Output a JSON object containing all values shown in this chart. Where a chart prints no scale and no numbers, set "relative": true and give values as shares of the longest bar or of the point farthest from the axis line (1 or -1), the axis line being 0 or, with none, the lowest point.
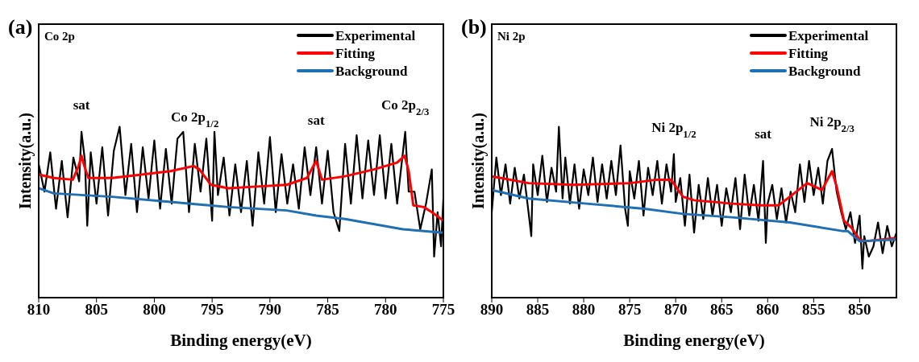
{
  "chart_data": [
    {
      "type": "line",
      "title": "(a)",
      "xlabel": "Binding energy(eV)",
      "ylabel": "Intensity(a.u.)",
      "relative": true,
      "legend": "top right",
      "xlim": [
        810,
        775
      ],
      "xticks": [
        810,
        805,
        800,
        795,
        790,
        785,
        780,
        775
      ],
      "annotations": [
        "Co 2p",
        {
          "text": "sat",
          "x": 806.3,
          "y": 0.97
        },
        {
          "text": "Co 2p$_{1/2}$",
          "x": 796.5,
          "y": 0.9
        },
        {
          "text": "sat",
          "x": 786,
          "y": 0.88
        },
        {
          "text": "Co 2p$_{2/3}$",
          "x": 778.3,
          "y": 0.97
        }
      ],
      "series": [
        {
          "name": "Experimental",
          "color": "#000000",
          "x": [
            810,
            809.5,
            809,
            808.5,
            808,
            807.5,
            807,
            806.5,
            806.3,
            806,
            805.8,
            805.5,
            805,
            804.5,
            804,
            803.5,
            803,
            802.5,
            802,
            801.5,
            801,
            800.5,
            800,
            799.5,
            799,
            798.5,
            798,
            797.5,
            797,
            796.5,
            796,
            795.5,
            795,
            794.8,
            794.5,
            794,
            793.5,
            793,
            792.5,
            792,
            791.5,
            791,
            790.5,
            790,
            789.5,
            789,
            788.5,
            788,
            787.5,
            787,
            786.5,
            786,
            785.5,
            785,
            784.5,
            784,
            783.5,
            783,
            782.5,
            782,
            781.5,
            781,
            780.5,
            780,
            779.5,
            779,
            778.5,
            778.3,
            778,
            777.5,
            777,
            776.5,
            776,
            775.8,
            775.5,
            775.2,
            775
          ],
          "values": [
            0.78,
            0.62,
            0.85,
            0.52,
            0.8,
            0.47,
            0.82,
            0.68,
            0.97,
            0.8,
            0.42,
            0.85,
            0.55,
            0.88,
            0.48,
            0.86,
            1.0,
            0.6,
            0.9,
            0.5,
            0.88,
            0.58,
            0.92,
            0.52,
            0.87,
            0.55,
            0.93,
            0.97,
            0.5,
            0.9,
            0.62,
            0.93,
            0.45,
            0.97,
            0.6,
            0.82,
            0.48,
            0.78,
            0.5,
            0.8,
            0.42,
            0.85,
            0.55,
            0.94,
            0.5,
            0.84,
            0.55,
            0.78,
            0.52,
            0.88,
            0.6,
            0.88,
            0.55,
            0.86,
            0.5,
            0.39,
            0.9,
            0.55,
            0.95,
            0.58,
            0.92,
            0.6,
            0.95,
            0.58,
            0.9,
            0.55,
            0.85,
            0.97,
            0.62,
            0.62,
            0.4,
            0.55,
            0.75,
            0.24,
            0.5,
            0.3,
            0.58
          ]
        },
        {
          "name": "Fitting",
          "color": "#ff0000",
          "x": [
            810,
            808.7,
            807.05,
            806.55,
            806.3,
            806.05,
            805.7,
            803.65,
            801.1,
            798.6,
            796.6,
            796.1,
            795.1,
            793.6,
            791.1,
            788.55,
            786.8,
            786.0,
            785.5,
            783.5,
            781.0,
            779.0,
            778.35,
            778.0,
            777.6,
            776.7,
            776.0,
            775
          ],
          "values": [
            0.72,
            0.7,
            0.69,
            0.77,
            0.83,
            0.77,
            0.7,
            0.7,
            0.72,
            0.74,
            0.77,
            0.75,
            0.66,
            0.64,
            0.65,
            0.66,
            0.7,
            0.8,
            0.69,
            0.71,
            0.75,
            0.79,
            0.83,
            0.74,
            0.54,
            0.53,
            0.5,
            0.45
          ]
        },
        {
          "name": "Background",
          "color": "#1f6fb5",
          "x": [
            810,
            808.7,
            803.65,
            798.6,
            793.6,
            788.55,
            786.0,
            783.5,
            778.5,
            775
          ],
          "values": [
            0.64,
            0.61,
            0.59,
            0.56,
            0.53,
            0.51,
            0.48,
            0.46,
            0.4,
            0.38
          ]
        }
      ]
    },
    {
      "type": "line",
      "title": "(b)",
      "xlabel": "Binding energy(eV)",
      "ylabel": "Intensity(a.u.)",
      "relative": true,
      "legend": "top right",
      "xlim": [
        890,
        846
      ],
      "xticks": [
        890,
        885,
        880,
        875,
        870,
        865,
        860,
        855,
        850
      ],
      "annotations": [
        "Ni 2p",
        {
          "text": "Ni 2p$_{1/2}$",
          "x": 870.2,
          "y": 0.84
        },
        {
          "text": "sat",
          "x": 860.5,
          "y": 0.8
        },
        {
          "text": "Ni 2p$_{2/3}$",
          "x": 853,
          "y": 0.87
        }
      ],
      "series": [
        {
          "name": "Experimental",
          "color": "#000000",
          "x": [
            890,
            889.5,
            889,
            888.5,
            888,
            887.5,
            887,
            886.5,
            886,
            885.7,
            885.5,
            885,
            884.5,
            884,
            883.5,
            883,
            882.7,
            882.3,
            882,
            881.5,
            881,
            880.5,
            880,
            879.5,
            879,
            878.5,
            878,
            877.5,
            877,
            876.5,
            876,
            875.5,
            875.2,
            875,
            874.5,
            874,
            873.5,
            873,
            872.5,
            872,
            871.5,
            871,
            870.5,
            870.2,
            870,
            869.5,
            869,
            868.5,
            868,
            867.5,
            867,
            866.5,
            866,
            865.5,
            865,
            864.5,
            864,
            863.5,
            863,
            862.5,
            862,
            861.5,
            861,
            860.5,
            860.2,
            860,
            859.5,
            859,
            858.5,
            858,
            857.5,
            857,
            856.5,
            856,
            855.5,
            855,
            854.5,
            854,
            853.5,
            853,
            852.5,
            852,
            851.5,
            851,
            850.5,
            850,
            849.7,
            849.5,
            849,
            848.5,
            848,
            847.5,
            847,
            846.5,
            846
          ],
          "values": [
            0.5,
            0.82,
            0.6,
            0.78,
            0.55,
            0.76,
            0.58,
            0.72,
            0.5,
            0.36,
            0.78,
            0.6,
            0.83,
            0.56,
            0.76,
            0.62,
            1.0,
            0.58,
            0.82,
            0.55,
            0.78,
            0.52,
            0.75,
            0.6,
            0.82,
            0.56,
            0.78,
            0.58,
            0.8,
            0.6,
            0.89,
            0.52,
            0.42,
            0.74,
            0.58,
            0.8,
            0.48,
            0.76,
            0.6,
            0.8,
            0.55,
            0.78,
            0.62,
            0.84,
            0.56,
            0.7,
            0.42,
            0.72,
            0.38,
            0.66,
            0.46,
            0.7,
            0.48,
            0.66,
            0.42,
            0.64,
            0.5,
            0.7,
            0.4,
            0.72,
            0.48,
            0.66,
            0.45,
            0.8,
            0.32,
            0.55,
            0.66,
            0.46,
            0.64,
            0.44,
            0.62,
            0.5,
            0.78,
            0.56,
            0.8,
            0.6,
            0.76,
            0.55,
            0.8,
            0.87,
            0.62,
            0.5,
            0.4,
            0.5,
            0.32,
            0.48,
            0.17,
            0.36,
            0.24,
            0.3,
            0.44,
            0.26,
            0.42,
            0.3,
            0.38
          ]
        },
        {
          "name": "Fitting",
          "color": "#ff0000",
          "x": [
            890,
            886,
            881.2,
            874.9,
            872.1,
            870.5,
            869.2,
            868.0,
            863.9,
            860.7,
            858.8,
            857.6,
            855.7,
            854.1,
            853.0,
            852.5,
            851.7,
            850.9,
            850.0,
            849.4,
            846
          ],
          "values": [
            0.71,
            0.67,
            0.66,
            0.67,
            0.69,
            0.69,
            0.59,
            0.57,
            0.55,
            0.54,
            0.54,
            0.59,
            0.67,
            0.63,
            0.74,
            0.65,
            0.45,
            0.41,
            0.34,
            0.33,
            0.35
          ]
        },
        {
          "name": "Background",
          "color": "#1f6fb5",
          "x": [
            890,
            886,
            879.7,
            873.4,
            869.2,
            863.9,
            857.6,
            851.9,
            851.3,
            850.0,
            846
          ],
          "values": [
            0.63,
            0.58,
            0.55,
            0.52,
            0.49,
            0.47,
            0.44,
            0.39,
            0.39,
            0.33,
            0.34
          ]
        }
      ]
    }
  ]
}
